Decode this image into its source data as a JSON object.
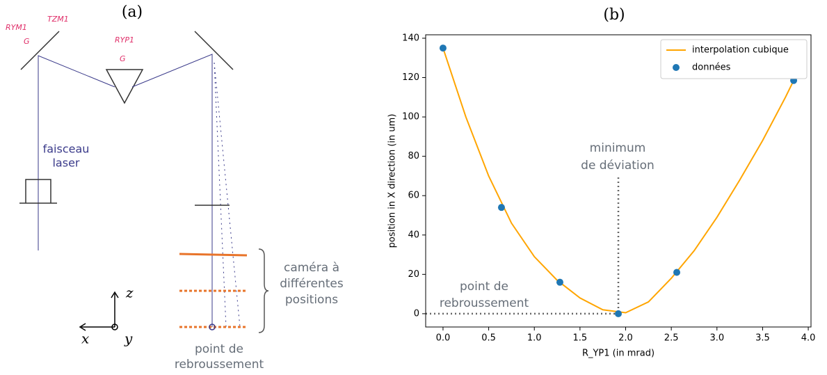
{
  "diagram": {
    "label": "(a)",
    "mirror_left_labels": [
      "RYM1",
      "TZM1",
      "G"
    ],
    "prism_labels": [
      "RYP1",
      "G"
    ],
    "beam_label": [
      "faisceau",
      "laser"
    ],
    "camera_label": [
      "caméra à",
      "différentes",
      "positions"
    ],
    "turning_point_label": [
      "point de",
      "rebroussement"
    ],
    "axes": {
      "z": "z",
      "x": "x",
      "y": "y"
    }
  },
  "chart_data": {
    "type": "line",
    "label": "(b)",
    "xlabel": "R_YP1 (in mrad)",
    "ylabel": "position in X direction (in um)",
    "xlim": [
      -0.19,
      4.03
    ],
    "ylim": [
      -6.75,
      141.75
    ],
    "xticks": [
      {
        "value": 0,
        "label": "0.0"
      },
      0.5,
      {
        "value": 1,
        "label": "1.0"
      },
      1.5,
      {
        "value": 2,
        "label": "2.0"
      },
      2.5,
      {
        "value": 3,
        "label": "3.0"
      },
      3.5,
      {
        "value": 4,
        "label": "4.0"
      }
    ],
    "yticks": [
      0,
      20,
      40,
      60,
      80,
      100,
      120,
      140
    ],
    "legend": "upper right",
    "series": [
      {
        "name": "interpolation cubique",
        "type": "line",
        "color": "#ffa500",
        "x": [
          0,
          0.25,
          0.5,
          0.75,
          1.0,
          1.25,
          1.5,
          1.75,
          2.0,
          2.25,
          2.5,
          2.75,
          3.0,
          3.25,
          3.5,
          3.75,
          3.84
        ],
        "values": [
          135,
          100,
          70,
          46,
          29,
          17,
          8,
          2,
          0.5,
          6,
          18,
          32,
          49,
          68,
          88,
          110,
          118.5
        ]
      },
      {
        "name": "données",
        "type": "scatter",
        "color": "#1f77b4",
        "x": [
          0,
          0.64,
          1.28,
          1.92,
          2.56,
          3.84
        ],
        "values": [
          135,
          54,
          16,
          0,
          21,
          118.5
        ]
      }
    ],
    "annotations": [
      [
        "minimum",
        "de déviation"
      ],
      [
        "point de",
        "rebroussement"
      ]
    ]
  }
}
